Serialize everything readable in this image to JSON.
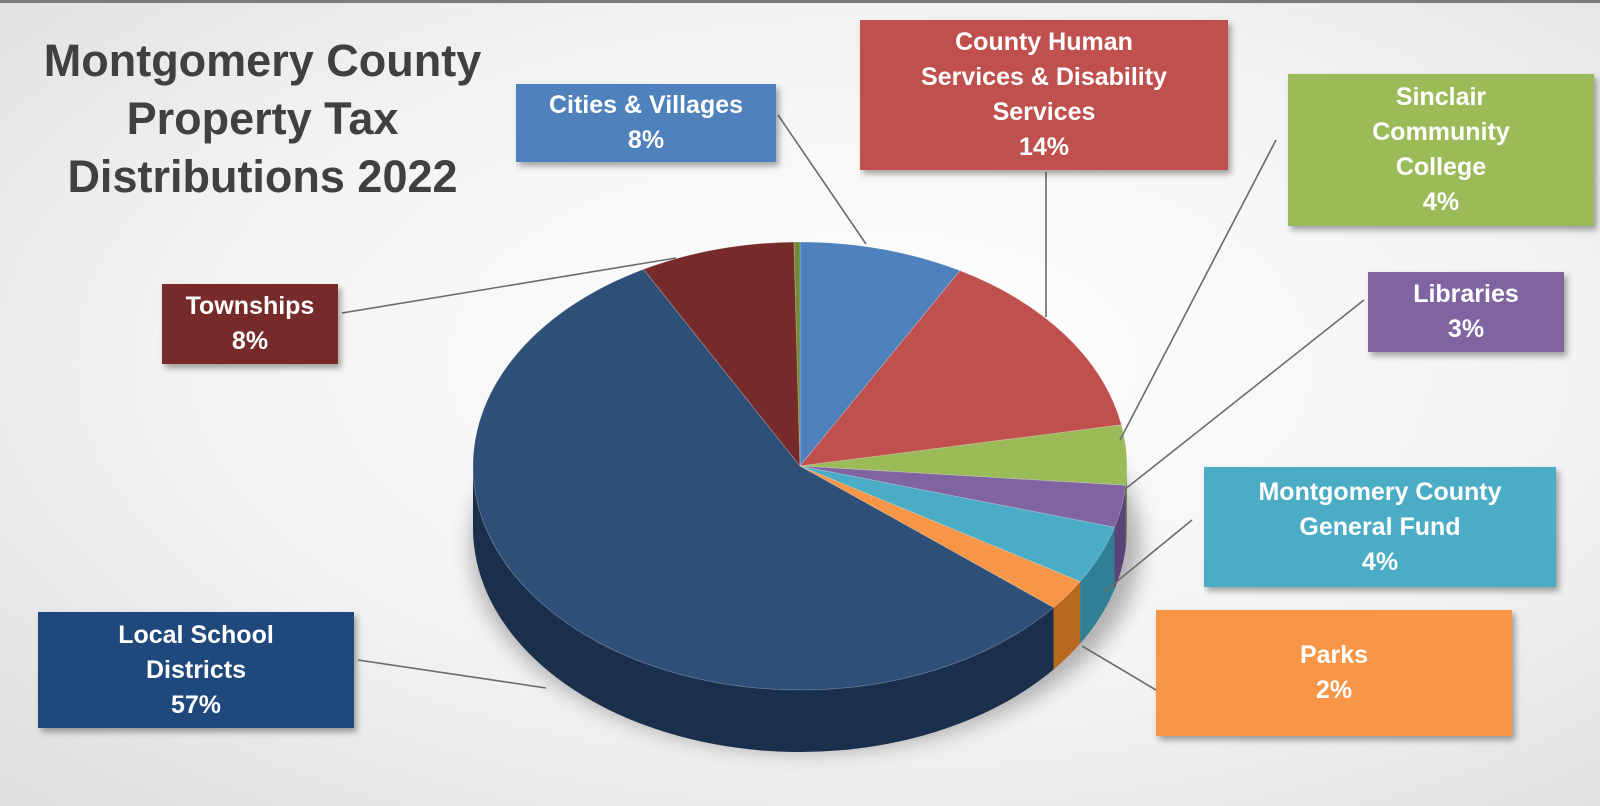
{
  "title_lines": [
    "Montgomery County",
    "Property Tax",
    "Distributions 2022"
  ],
  "chart_data": {
    "type": "pie",
    "title": "Montgomery County Property Tax Distributions 2022",
    "unit": "%",
    "start_angle_deg": 0,
    "direction": "clockwise",
    "slices": [
      {
        "key": "cities",
        "label_lines": [
          "Cities & Villages"
        ],
        "value_label": "8%",
        "value": 8.3,
        "color": "#4f81bd",
        "side": "#2f5a8a"
      },
      {
        "key": "human",
        "label_lines": [
          "County Human",
          "Services & Disability",
          "Services"
        ],
        "value_label": "14%",
        "value": 14.2,
        "color": "#c0504d",
        "side": "#8f3431"
      },
      {
        "key": "sinclair",
        "label_lines": [
          "Sinclair",
          "Community",
          "College"
        ],
        "value_label": "4%",
        "value": 4.4,
        "color": "#9bbb59",
        "side": "#6c8a35"
      },
      {
        "key": "libraries",
        "label_lines": [
          "Libraries"
        ],
        "value_label": "3%",
        "value": 3.1,
        "color": "#8064a2",
        "side": "#5a4476"
      },
      {
        "key": "general",
        "label_lines": [
          "Montgomery County",
          "General Fund"
        ],
        "value_label": "4%",
        "value": 4.3,
        "color": "#4bacc6",
        "side": "#2f7f95"
      },
      {
        "key": "parks",
        "label_lines": [
          "Parks"
        ],
        "value_label": "2%",
        "value": 2.3,
        "color": "#f79646",
        "side": "#b9681f"
      },
      {
        "key": "schools",
        "label_lines": [
          "Local School",
          "Districts"
        ],
        "value_label": "57%",
        "value": 57.3,
        "color": "#2e4f78",
        "side": "#1a2f4b"
      },
      {
        "key": "townships",
        "label_lines": [
          "Townships"
        ],
        "value_label": "8%",
        "value": 7.8,
        "color": "#772a2a",
        "side": "#4e1a1a"
      },
      {
        "key": "other",
        "label_lines": [],
        "value_label": "",
        "value": 0.3,
        "color": "#6f8a3a",
        "side": "#4a5e25"
      }
    ]
  }
}
